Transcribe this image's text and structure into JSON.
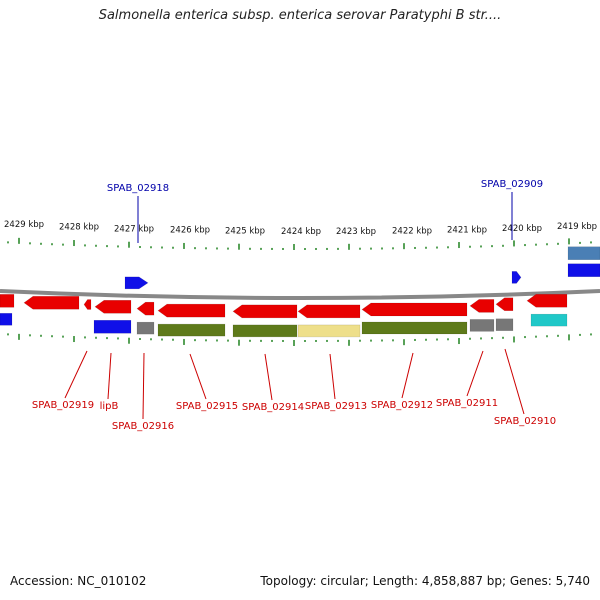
{
  "title": "Salmonella enterica subsp. enterica serovar Paratyphi B str....",
  "footer": {
    "accession": "Accession: NC_010102",
    "stats": "Topology: circular; Length: 4,858,887 bp; Genes: 5,740"
  },
  "colors": {
    "forward_gene": "#1010e8",
    "reverse_gene": "#e80000",
    "gene_dark": "#5e7a1a",
    "gene_light": "#eedf8a",
    "gene_gray": "#777777",
    "gene_cyan": "#20c8c8",
    "gene_steel": "#4a7fb5",
    "backbone": "#888888",
    "tick": "#2e8b2e",
    "top_label": "#0000aa",
    "bottom_label": "#cc0000"
  },
  "scale_labels": [
    "2429 kbp",
    "2428 kbp",
    "2427 kbp",
    "2426 kbp",
    "2425 kbp",
    "2424 kbp",
    "2423 kbp",
    "2422 kbp",
    "2421 kbp",
    "2420 kbp",
    "2419 kbp"
  ],
  "top_gene_labels": [
    "SPAB_02918",
    "SPAB_02909"
  ],
  "bottom_gene_labels": [
    "SPAB_02919",
    "lipB",
    "SPAB_02916",
    "SPAB_02915",
    "SPAB_02914",
    "SPAB_02913",
    "SPAB_02912",
    "SPAB_02911",
    "SPAB_02910"
  ]
}
